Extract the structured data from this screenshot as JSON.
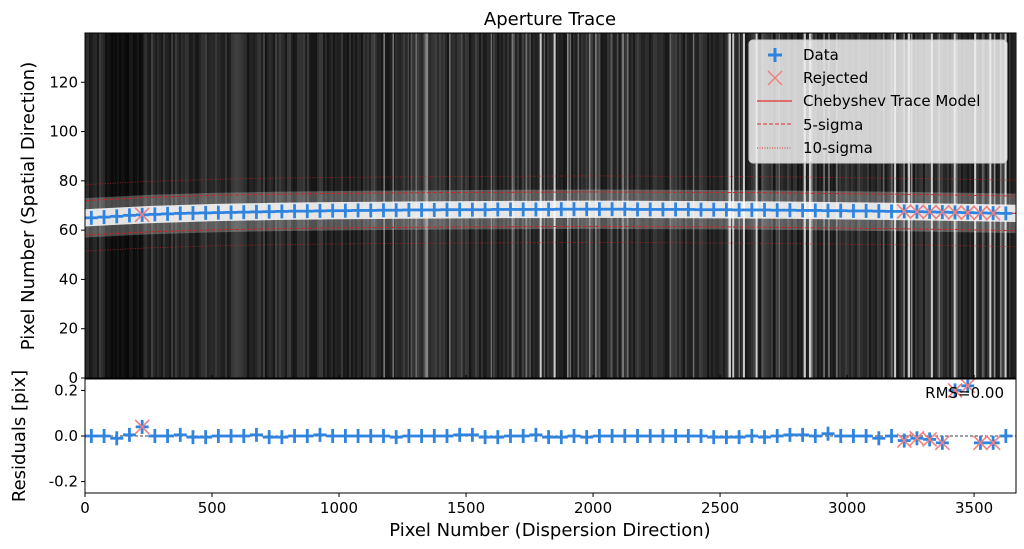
{
  "chart_data": [
    {
      "type": "scatter",
      "panel": "trace",
      "title": "Aperture Trace",
      "xlabel": "",
      "ylabel": "Pixel Number (Spatial Direction)",
      "xlim": [
        0,
        3665
      ],
      "ylim": [
        0,
        140
      ],
      "yticks": [
        0,
        20,
        40,
        60,
        80,
        100,
        120
      ],
      "legend_position": "top-right",
      "legend": [
        "Data",
        "Rejected",
        "Chebyshev Trace Model",
        "5-sigma",
        "10-sigma"
      ],
      "series": [
        {
          "name": "Data",
          "x": [
            25,
            75,
            125,
            175,
            225,
            275,
            325,
            375,
            425,
            475,
            525,
            575,
            625,
            675,
            725,
            775,
            825,
            875,
            925,
            975,
            1025,
            1075,
            1125,
            1175,
            1225,
            1275,
            1325,
            1375,
            1425,
            1475,
            1525,
            1575,
            1625,
            1675,
            1725,
            1775,
            1825,
            1875,
            1925,
            1975,
            2025,
            2075,
            2125,
            2175,
            2225,
            2275,
            2325,
            2375,
            2425,
            2475,
            2525,
            2575,
            2625,
            2675,
            2725,
            2775,
            2825,
            2875,
            2925,
            2975,
            3025,
            3075,
            3125,
            3175,
            3225,
            3275,
            3325,
            3375,
            3425,
            3475,
            3525,
            3575,
            3625
          ],
          "y": [
            65.0,
            65.3,
            65.6,
            66.0,
            66.2,
            66.4,
            66.6,
            66.8,
            66.9,
            67.0,
            67.1,
            67.2,
            67.3,
            67.4,
            67.5,
            67.6,
            67.7,
            67.7,
            67.8,
            67.9,
            67.9,
            68.0,
            68.0,
            68.1,
            68.1,
            68.2,
            68.2,
            68.2,
            68.3,
            68.3,
            68.3,
            68.3,
            68.4,
            68.4,
            68.4,
            68.4,
            68.4,
            68.5,
            68.5,
            68.5,
            68.5,
            68.5,
            68.5,
            68.4,
            68.4,
            68.4,
            68.4,
            68.4,
            68.3,
            68.3,
            68.3,
            68.2,
            68.2,
            68.2,
            68.1,
            68.1,
            68.0,
            68.0,
            67.9,
            67.9,
            67.8,
            67.8,
            67.7,
            67.6,
            67.6,
            67.5,
            67.4,
            67.3,
            67.2,
            67.1,
            67.0,
            66.9,
            66.8
          ]
        },
        {
          "name": "Rejected",
          "x": [
            225,
            3225,
            3275,
            3325,
            3375,
            3425,
            3475,
            3525,
            3575
          ],
          "y": [
            66.2,
            67.6,
            67.5,
            67.4,
            67.3,
            67.2,
            67.1,
            67.0,
            66.9
          ]
        },
        {
          "name": "Chebyshev Trace Model",
          "x": [
            0,
            250,
            500,
            750,
            1000,
            1250,
            1500,
            1750,
            2000,
            2250,
            2500,
            2750,
            3000,
            3250,
            3500,
            3665
          ],
          "y": [
            65.0,
            66.3,
            67.1,
            67.6,
            67.9,
            68.1,
            68.3,
            68.4,
            68.5,
            68.4,
            68.3,
            68.1,
            67.8,
            67.5,
            67.1,
            66.8
          ]
        },
        {
          "name": "5-sigma",
          "offset": 7
        },
        {
          "name": "10-sigma",
          "offset": 13.5
        }
      ]
    },
    {
      "type": "scatter",
      "panel": "residuals",
      "xlabel": "Pixel Number (Dispersion Direction)",
      "ylabel": "Residuals [pix]",
      "xlim": [
        0,
        3665
      ],
      "ylim": [
        -0.25,
        0.25
      ],
      "xticks": [
        0,
        500,
        1000,
        1500,
        2000,
        2500,
        3000,
        3500
      ],
      "yticks": [
        -0.2,
        0.0,
        0.2
      ],
      "annotation": "RMS=0.00",
      "series": [
        {
          "name": "Data",
          "x": [
            25,
            75,
            125,
            175,
            225,
            275,
            325,
            375,
            425,
            475,
            525,
            575,
            625,
            675,
            725,
            775,
            825,
            875,
            925,
            975,
            1025,
            1075,
            1125,
            1175,
            1225,
            1275,
            1325,
            1375,
            1425,
            1475,
            1525,
            1575,
            1625,
            1675,
            1725,
            1775,
            1825,
            1875,
            1925,
            1975,
            2025,
            2075,
            2125,
            2175,
            2225,
            2275,
            2325,
            2375,
            2425,
            2475,
            2525,
            2575,
            2625,
            2675,
            2725,
            2775,
            2825,
            2875,
            2925,
            2975,
            3025,
            3075,
            3125,
            3175,
            3225,
            3275,
            3325,
            3375,
            3425,
            3475,
            3525,
            3575,
            3625
          ],
          "y": [
            0.0,
            0.0,
            -0.01,
            0.005,
            0.04,
            0.0,
            0.0,
            0.005,
            -0.005,
            -0.005,
            0.0,
            0.0,
            0.0,
            0.005,
            -0.005,
            -0.005,
            0.0,
            0.0,
            0.005,
            0.0,
            0.0,
            0.0,
            0.0,
            0.0,
            -0.005,
            0.0,
            0.0,
            0.0,
            0.0,
            0.005,
            0.005,
            -0.005,
            -0.005,
            0.0,
            0.0,
            0.005,
            -0.005,
            -0.005,
            0.0,
            -0.005,
            0.0,
            0.0,
            0.0,
            0.0,
            0.0,
            0.0,
            0.0,
            0.0,
            0.0,
            -0.005,
            -0.005,
            -0.005,
            0.0,
            -0.005,
            0.0,
            0.005,
            0.005,
            0.0,
            0.01,
            0.0,
            0.0,
            0.0,
            -0.01,
            0.0,
            -0.02,
            -0.01,
            -0.015,
            -0.03,
            0.2,
            0.22,
            -0.03,
            -0.03,
            0.0
          ]
        },
        {
          "name": "Rejected",
          "x": [
            225,
            3225,
            3275,
            3325,
            3375,
            3425,
            3475,
            3525,
            3575
          ],
          "y": [
            0.04,
            -0.02,
            -0.01,
            -0.015,
            -0.03,
            0.2,
            0.22,
            -0.03,
            -0.03
          ]
        }
      ]
    }
  ],
  "colors": {
    "data": "#2f84e0",
    "rejected": "#f08080",
    "model": "#e03030",
    "sigma": "#d02020"
  }
}
